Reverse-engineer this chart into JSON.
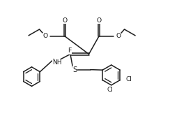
{
  "bg": "#ffffff",
  "lc": "#1e1e1e",
  "lw": 1.1,
  "fs": 6.8,
  "figsize": [
    2.44,
    1.66
  ],
  "dpi": 100,
  "xlim": [
    -0.5,
    10.5
  ],
  "ylim": [
    0.0,
    7.2
  ]
}
